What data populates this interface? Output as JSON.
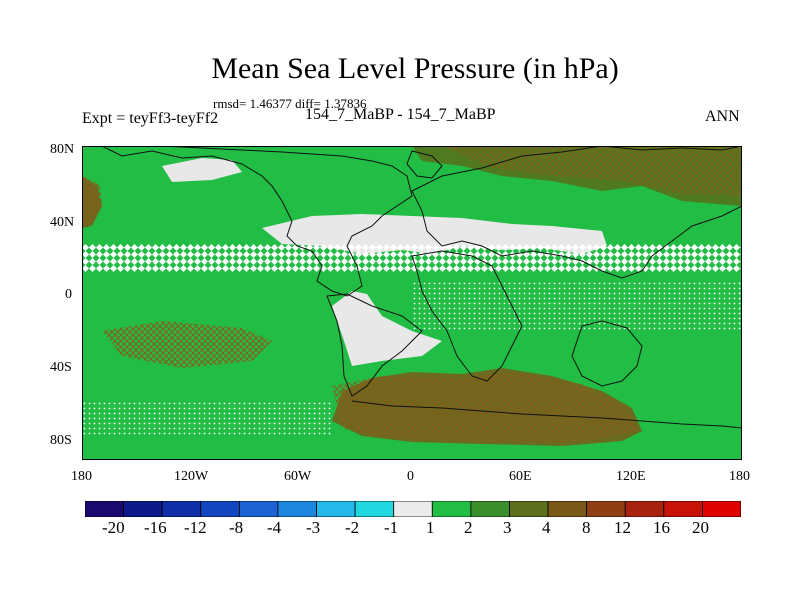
{
  "title": "Mean Sea Level Pressure (in hPa)",
  "stats": "rmsd= 1.46377 diff= 1.37836",
  "experiment": "Expt = teyFf3-teyFf2",
  "subtitle": "154_7_MaBP - 154_7_MaBP",
  "season": "ANN",
  "lat_labels": [
    "80N",
    "40N",
    "0",
    "40S",
    "80S"
  ],
  "lon_labels": [
    "180",
    "120W",
    "60W",
    "0",
    "60E",
    "120E",
    "180"
  ],
  "colors": {
    "ocean_green": "#21bd45",
    "neutral": "#e8e8e8",
    "olive": "#4f7a1f",
    "olive_dark": "#6b6b1f",
    "coast": "#111111"
  },
  "colorbar": {
    "levels": [
      "-20",
      "-16",
      "-12",
      "-8",
      "-4",
      "-3",
      "-2",
      "-1",
      "1",
      "2",
      "3",
      "4",
      "8",
      "12",
      "16",
      "20"
    ],
    "colors": [
      "#1a0a6e",
      "#0c1a8a",
      "#0f2fa8",
      "#1246c0",
      "#1c62d2",
      "#1f86e0",
      "#25b8e8",
      "#22d8e0",
      "#ebebeb",
      "#21bd45",
      "#3c8e2c",
      "#5d6f1d",
      "#7a5818",
      "#8e3f14",
      "#a8230f",
      "#c7120a",
      "#e00000"
    ]
  }
}
